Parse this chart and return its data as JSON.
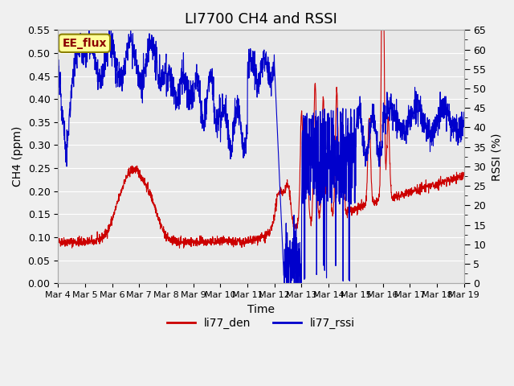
{
  "title": "LI7700 CH4 and RSSI",
  "ylabel_left": "CH4 (ppm)",
  "ylabel_right": "RSSI (%)",
  "xlabel": "Time",
  "xlim": [
    0,
    15
  ],
  "ylim_left": [
    0.0,
    0.55
  ],
  "ylim_right": [
    0,
    65
  ],
  "yticks_left": [
    0.0,
    0.05,
    0.1,
    0.15,
    0.2,
    0.25,
    0.3,
    0.35,
    0.4,
    0.45,
    0.5,
    0.55
  ],
  "yticks_right": [
    0,
    5,
    10,
    15,
    20,
    25,
    30,
    35,
    40,
    45,
    50,
    55,
    60,
    65
  ],
  "xtick_labels": [
    "Mar 4",
    "Mar 5",
    "Mar 6",
    "Mar 7",
    "Mar 8",
    "Mar 9",
    "Mar 10",
    "Mar 11",
    "Mar 12",
    "Mar 13",
    "Mar 14",
    "Mar 15",
    "Mar 16",
    "Mar 17",
    "Mar 18",
    "Mar 19"
  ],
  "color_red": "#cc0000",
  "color_blue": "#0000cc",
  "legend_label_red": "li77_den",
  "legend_label_blue": "li77_rssi",
  "annotation_text": "EE_flux",
  "annotation_color": "#8b0000",
  "annotation_bg": "#ffff99",
  "background_color": "#e8e8e8",
  "title_fontsize": 13,
  "label_fontsize": 10,
  "tick_fontsize": 9
}
